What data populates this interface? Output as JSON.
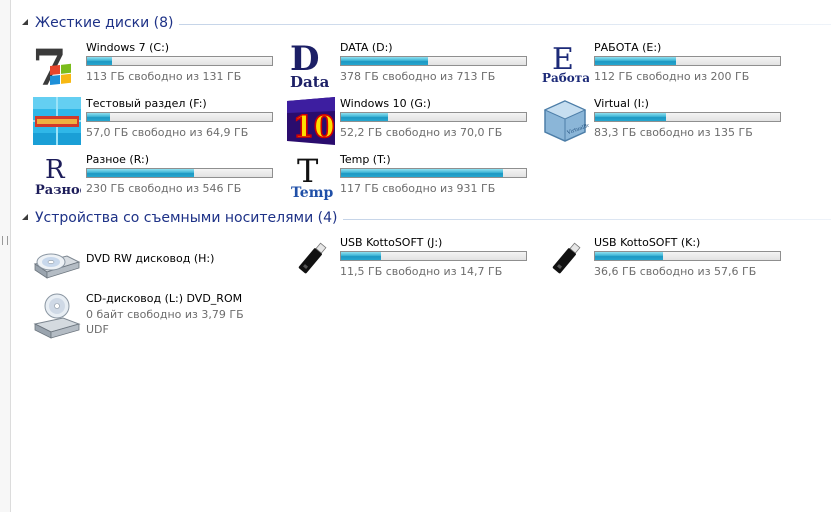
{
  "groups": [
    {
      "title": "Жесткие диски (8)",
      "items": [
        {
          "name": "Windows 7 (C:)",
          "info": "113 ГБ свободно из 131 ГБ",
          "used_fraction": 0.137,
          "icon": "windows7-icon"
        },
        {
          "name": "DATA (D:)",
          "info": "378 ГБ свободно из 713 ГБ",
          "used_fraction": 0.47,
          "icon": "data-drive-icon"
        },
        {
          "name": "РАБОТА (E:)",
          "info": "112 ГБ свободно из 200 ГБ",
          "used_fraction": 0.44,
          "icon": "rabota-drive-icon"
        },
        {
          "name": "Тестовый раздел (F:)",
          "info": "57,0 ГБ свободно из 64,9 ГБ",
          "used_fraction": 0.122,
          "icon": "test-partition-icon"
        },
        {
          "name": "Windows 10 (G:)",
          "info": "52,2 ГБ свободно из 70,0 ГБ",
          "used_fraction": 0.254,
          "icon": "windows10-icon"
        },
        {
          "name": "Virtual (I:)",
          "info": "83,3 ГБ свободно из 135 ГБ",
          "used_fraction": 0.383,
          "icon": "virtualbox-icon"
        },
        {
          "name": "Разное (R:)",
          "info": "230 ГБ свободно из 546 ГБ",
          "used_fraction": 0.579,
          "icon": "raznoe-drive-icon"
        },
        {
          "name": "Temp (T:)",
          "info": "117 ГБ свободно из 931 ГБ",
          "used_fraction": 0.874,
          "icon": "temp-drive-icon"
        }
      ]
    },
    {
      "title": "Устройства со съемными носителями (4)",
      "items": [
        {
          "name": "DVD RW дисковод (H:)",
          "icon": "dvd-drive-icon"
        },
        {
          "name": "USB KottoSOFT (J:)",
          "info": "11,5 ГБ свободно из 14,7 ГБ",
          "used_fraction": 0.218,
          "icon": "usb-drive-icon"
        },
        {
          "name": "USB KottoSOFT (K:)",
          "info": "36,6 ГБ свободно из 57,6 ГБ",
          "used_fraction": 0.365,
          "icon": "usb-drive-icon"
        },
        {
          "name": "CD-дисковод (L:) DVD_ROM",
          "info": "0 байт свободно из 3,79 ГБ",
          "info2": "UDF",
          "icon": "cd-drive-icon"
        }
      ]
    }
  ],
  "icon_text": {
    "win7_digit": "7",
    "data_letter": "D",
    "data_word": "Data",
    "rabota_letter": "E",
    "rabota_word": "Работа",
    "win10_digit": "10",
    "raznoe_letter": "R",
    "raznoe_word": "Разное",
    "temp_letter": "T",
    "temp_word": "Temp",
    "virtualbox_word": "VirtualBox"
  },
  "colors": {
    "group_title": "#1e3287",
    "info_text": "#6d6d6d",
    "bar_fill": "#26a7cf"
  }
}
